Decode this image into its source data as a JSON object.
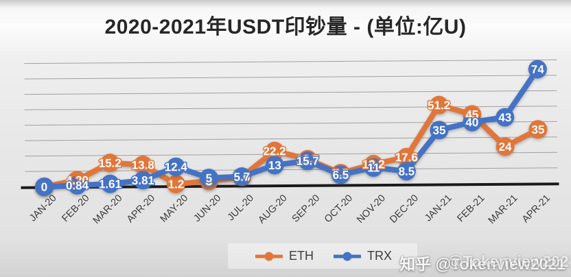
{
  "title": "2020-2021年USDT印钞量 - (单位:亿U)",
  "legend": {
    "items": [
      {
        "label": "ETH",
        "color": "#E0763A"
      },
      {
        "label": "TRX",
        "color": "#4472C4"
      }
    ]
  },
  "watermark": {
    "text": "知乎 @Tokenview2021",
    "ghost": "@Tokenview2021"
  },
  "colors": {
    "eth": "#E0763A",
    "trx": "#4472C4",
    "gridline": "#a0a0a0",
    "axis_line": "#1a1a1a",
    "label_text": "#ffffff",
    "background": "#e8e8e8"
  },
  "chart_data": {
    "type": "line",
    "title": "2020-2021年USDT印钞量 - (单位:亿U)",
    "categories": [
      "JAN-20",
      "FEB-20",
      "MAR-20",
      "APR-20",
      "MAY-20",
      "JUN-20",
      "JUL-20",
      "AUG-20",
      "SEP-20",
      "OCT-20",
      "NOV-20",
      "DEC-20",
      "JAN-21",
      "FEB-21",
      "MAR-21",
      "APR-21"
    ],
    "series": [
      {
        "name": "ETH",
        "color": "#E0763A",
        "values": [
          0,
          4.2,
          15.2,
          13.8,
          1.2,
          3,
          5.6,
          22.2,
          16.7,
          7.5,
          13.2,
          17.6,
          51.2,
          45,
          24,
          35
        ],
        "labels": [
          "0",
          "4.20",
          "15.2",
          "13.8",
          "1.2",
          "3",
          "5.6",
          "22.2",
          "16.7",
          "7.5",
          "13.2",
          "17.6",
          "51.2",
          "45",
          "24",
          "35"
        ]
      },
      {
        "name": "TRX",
        "color": "#4472C4",
        "values": [
          0,
          0.84,
          1.61,
          3.81,
          12.4,
          5,
          5.7,
          13,
          15.7,
          6.5,
          11,
          8.5,
          35,
          40,
          43,
          74
        ],
        "labels": [
          "0",
          "0.84",
          "1.61",
          "3.81",
          "12.4",
          "5",
          "5.7",
          "13",
          "15.7",
          "6.5",
          "11",
          "8.5",
          "35",
          "40",
          "43",
          "74"
        ]
      }
    ],
    "xlabel": "",
    "ylabel": "",
    "ylim": [
      0,
      80
    ],
    "grid": true,
    "grid_step": 10,
    "legend_position": "bottom"
  }
}
